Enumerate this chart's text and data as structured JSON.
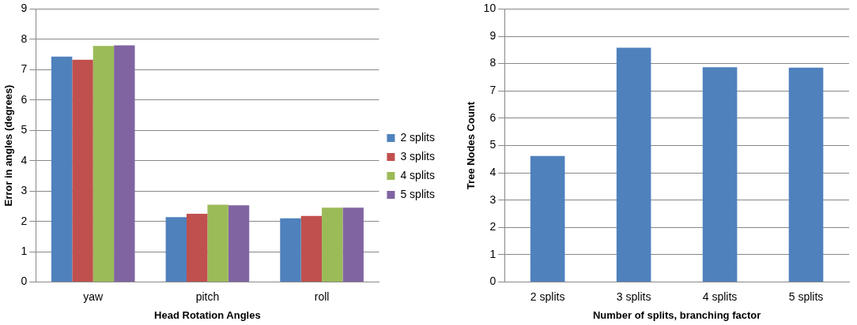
{
  "chart_data": [
    {
      "type": "bar",
      "xlabel": "Head Rotation Angles",
      "ylabel": "Error in angles (degrees)",
      "categories": [
        "yaw",
        "pitch",
        "roll"
      ],
      "series": [
        {
          "name": "2 splits",
          "color": "#4f81bd",
          "values": [
            7.43,
            2.14,
            2.1
          ]
        },
        {
          "name": "3 splits",
          "color": "#c0504d",
          "values": [
            7.33,
            2.25,
            2.18
          ]
        },
        {
          "name": "4 splits",
          "color": "#9bbb59",
          "values": [
            7.78,
            2.55,
            2.45
          ]
        },
        {
          "name": "5 splits",
          "color": "#8064a2",
          "values": [
            7.8,
            2.53,
            2.45
          ]
        }
      ],
      "ylim": [
        0,
        9
      ],
      "yticks": [
        0,
        1,
        2,
        3,
        4,
        5,
        6,
        7,
        8,
        9
      ],
      "grid": "y",
      "legend": "right"
    },
    {
      "type": "bar",
      "xlabel": "Number of splits, branching factor",
      "ylabel": "Tree Nodes Count",
      "categories": [
        "2 splits",
        "3 splits",
        "4 splits",
        "5 splits"
      ],
      "values": [
        4.62,
        8.58,
        7.87,
        7.85
      ],
      "color": "#4f81bd",
      "ylim": [
        0,
        10
      ],
      "yticks": [
        0,
        1,
        2,
        3,
        4,
        5,
        6,
        7,
        8,
        9,
        10
      ],
      "grid": "y"
    }
  ]
}
